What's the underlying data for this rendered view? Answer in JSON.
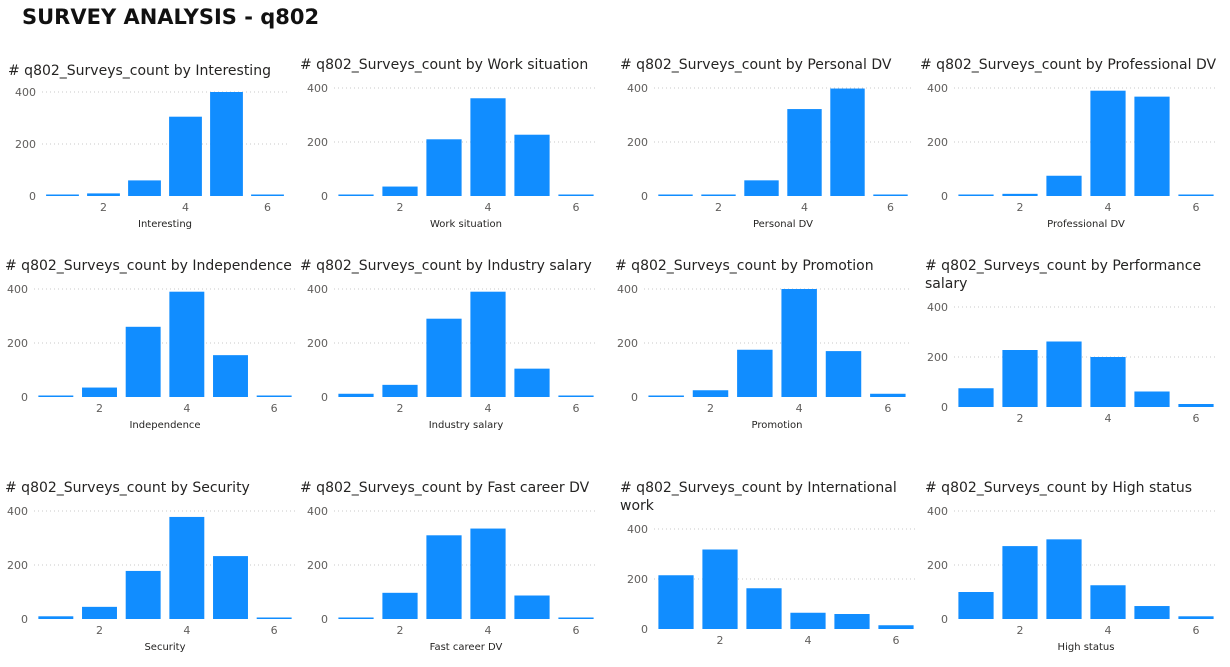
{
  "page": {
    "title": "SURVEY ANALYSIS - q802"
  },
  "colors": {
    "bar": "#118DFF",
    "grid": "#c8c8c8"
  },
  "chart_data": [
    {
      "type": "bar",
      "title": "# q802_Surveys_count by Interesting",
      "xlabel": "Interesting",
      "x": [
        1,
        2,
        3,
        4,
        5,
        6
      ],
      "values": [
        3,
        10,
        60,
        305,
        400,
        3
      ],
      "xlim": [
        0.5,
        6.5
      ],
      "ylim": [
        0,
        400
      ],
      "xticks": [
        2,
        4,
        6
      ],
      "yticks": [
        0,
        200,
        400
      ],
      "grid": true
    },
    {
      "type": "bar",
      "title": "# q802_Surveys_count by Work situation",
      "xlabel": "Work situation",
      "x": [
        1,
        2,
        3,
        4,
        5,
        6
      ],
      "values": [
        3,
        35,
        210,
        362,
        227,
        3
      ],
      "xlim": [
        0.5,
        6.5
      ],
      "ylim": [
        0,
        400
      ],
      "xticks": [
        2,
        4,
        6
      ],
      "yticks": [
        0,
        200,
        400
      ],
      "grid": true
    },
    {
      "type": "bar",
      "title": "# q802_Surveys_count by Personal DV",
      "xlabel": "Personal DV",
      "x": [
        1,
        2,
        3,
        4,
        5,
        6
      ],
      "values": [
        2,
        3,
        58,
        322,
        398,
        3
      ],
      "xlim": [
        0.5,
        6.5
      ],
      "ylim": [
        0,
        400
      ],
      "xticks": [
        2,
        4,
        6
      ],
      "yticks": [
        0,
        200,
        400
      ],
      "grid": true
    },
    {
      "type": "bar",
      "title": "# q802_Surveys_count by Professional DV",
      "xlabel": "Professional DV",
      "x": [
        1,
        2,
        3,
        4,
        5,
        6
      ],
      "values": [
        1,
        8,
        75,
        390,
        368,
        3
      ],
      "xlim": [
        0.5,
        6.5
      ],
      "ylim": [
        0,
        400
      ],
      "xticks": [
        2,
        4,
        6
      ],
      "yticks": [
        0,
        200,
        400
      ],
      "grid": true
    },
    {
      "type": "bar",
      "title": "# q802_Surveys_count by Independence",
      "xlabel": "Independence",
      "x": [
        1,
        2,
        3,
        4,
        5,
        6
      ],
      "values": [
        3,
        35,
        260,
        390,
        155,
        3
      ],
      "xlim": [
        0.5,
        6.5
      ],
      "ylim": [
        0,
        400
      ],
      "xticks": [
        2,
        4,
        6
      ],
      "yticks": [
        0,
        200,
        400
      ],
      "grid": true
    },
    {
      "type": "bar",
      "title": "# q802_Surveys_count by Industry salary",
      "xlabel": "Industry salary",
      "x": [
        1,
        2,
        3,
        4,
        5,
        6
      ],
      "values": [
        12,
        45,
        290,
        390,
        105,
        1
      ],
      "xlim": [
        0.5,
        6.5
      ],
      "ylim": [
        0,
        400
      ],
      "xticks": [
        2,
        4,
        6
      ],
      "yticks": [
        0,
        200,
        400
      ],
      "grid": true
    },
    {
      "type": "bar",
      "title": "# q802_Surveys_count by Promotion",
      "xlabel": "Promotion",
      "x": [
        1,
        2,
        3,
        4,
        5,
        6
      ],
      "values": [
        3,
        25,
        175,
        400,
        170,
        12
      ],
      "xlim": [
        0.5,
        6.5
      ],
      "ylim": [
        0,
        400
      ],
      "xticks": [
        2,
        4,
        6
      ],
      "yticks": [
        0,
        200,
        400
      ],
      "grid": true
    },
    {
      "type": "bar",
      "title": "# q802_Surveys_count by Performance salary",
      "xlabel": "",
      "x": [
        0,
        1,
        2,
        3,
        4,
        5
      ],
      "values": [
        75,
        228,
        262,
        200,
        62,
        12
      ],
      "xlim": [
        -0.5,
        5.5
      ],
      "ylim": [
        0,
        400
      ],
      "xticks": [
        1,
        3,
        5
      ],
      "xtick_labels": [
        "2",
        "4",
        "6"
      ],
      "yticks": [
        0,
        200,
        400
      ],
      "grid": true
    },
    {
      "type": "bar",
      "title": "# q802_Surveys_count by Security",
      "xlabel": "Security",
      "x": [
        1,
        2,
        3,
        4,
        5,
        6
      ],
      "values": [
        10,
        45,
        178,
        378,
        233,
        3
      ],
      "xlim": [
        0.5,
        6.5
      ],
      "ylim": [
        0,
        400
      ],
      "xticks": [
        2,
        4,
        6
      ],
      "yticks": [
        0,
        200,
        400
      ],
      "grid": true
    },
    {
      "type": "bar",
      "title": "# q802_Surveys_count by Fast career DV",
      "xlabel": "Fast career DV",
      "x": [
        1,
        2,
        3,
        4,
        5,
        6
      ],
      "values": [
        5,
        97,
        310,
        335,
        87,
        3
      ],
      "xlim": [
        0.5,
        6.5
      ],
      "ylim": [
        0,
        400
      ],
      "xticks": [
        2,
        4,
        6
      ],
      "yticks": [
        0,
        200,
        400
      ],
      "grid": true
    },
    {
      "type": "bar",
      "title": "# q802_Surveys_count by International work",
      "xlabel": "",
      "x": [
        0,
        1,
        2,
        3,
        4,
        5
      ],
      "values": [
        215,
        318,
        163,
        65,
        60,
        15
      ],
      "xlim": [
        -0.5,
        5.5
      ],
      "ylim": [
        0,
        400
      ],
      "xticks": [
        1,
        3,
        5
      ],
      "xtick_labels": [
        "2",
        "4",
        "6"
      ],
      "yticks": [
        0,
        200,
        400
      ],
      "grid": true
    },
    {
      "type": "bar",
      "title": "# q802_Surveys_count by High status",
      "xlabel": "High status",
      "x": [
        0,
        1,
        2,
        3,
        4,
        5
      ],
      "values": [
        100,
        270,
        295,
        125,
        48,
        10
      ],
      "xlim": [
        -0.5,
        5.5
      ],
      "ylim": [
        0,
        400
      ],
      "xticks": [
        1,
        3,
        5
      ],
      "xtick_labels": [
        "2",
        "4",
        "6"
      ],
      "yticks": [
        0,
        200,
        400
      ],
      "grid": true
    }
  ]
}
